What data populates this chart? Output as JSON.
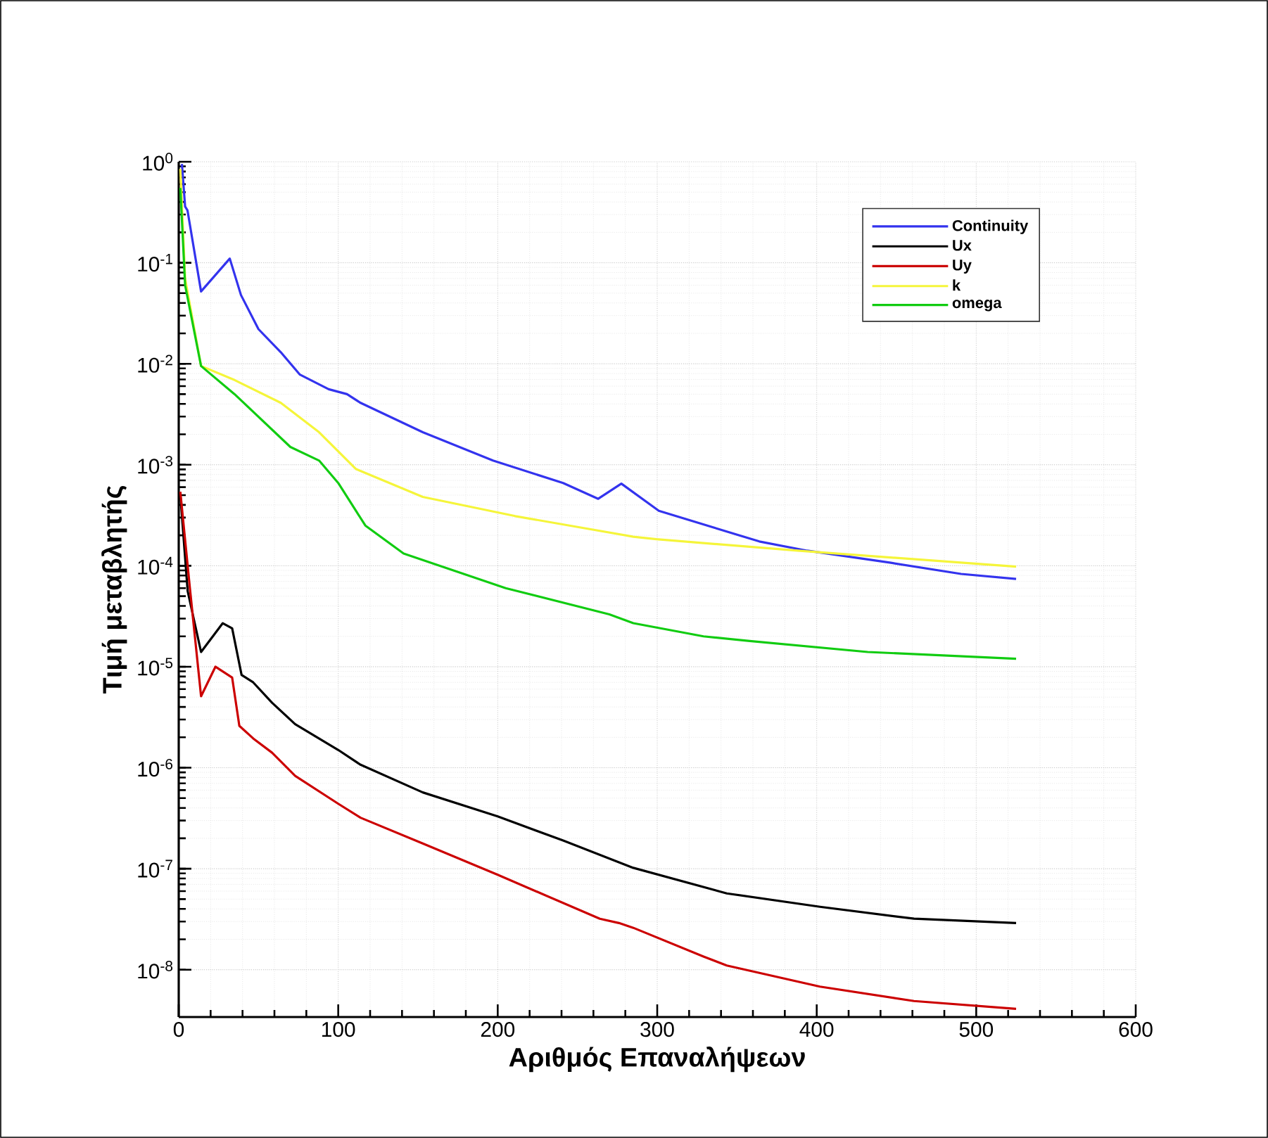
{
  "chart_data": {
    "type": "line",
    "xlabel": "Αριθμός Επαναλήψεων",
    "ylabel": "Τιμή μεταβλητής",
    "log": "y",
    "grid": true,
    "legend": "top right",
    "xlim": [
      0,
      600
    ],
    "xticks": [
      0,
      100,
      200,
      300,
      400,
      500,
      600
    ],
    "ylim": [
      3.4e-09,
      1
    ],
    "yticks": [
      {
        "value": 1e-08,
        "label": "10$^{-8}$"
      },
      {
        "value": 1e-07,
        "label": "10$^{-7}$"
      },
      {
        "value": 1e-06,
        "label": "10$^{-6}$"
      },
      {
        "value": 1e-05,
        "label": "10$^{-5}$"
      },
      {
        "value": 0.0001,
        "label": "10$^{-4}$"
      },
      {
        "value": 0.001,
        "label": "10$^{-3}$"
      },
      {
        "value": 0.01,
        "label": "10$^{-2}$"
      },
      {
        "value": 0.1,
        "label": "10$^{-1}$"
      },
      {
        "value": 1,
        "label": "10$^{0}$"
      }
    ],
    "series": [
      {
        "name": "Continuity",
        "color": "#3333ee",
        "x": [
          2,
          4,
          5.5,
          14,
          32,
          39,
          50,
          64,
          76,
          94,
          105.5,
          114,
          153,
          197,
          241,
          263,
          277.5,
          301,
          335,
          364,
          394,
          446.5,
          490.5,
          525
        ],
        "values": [
          0.95,
          0.36,
          0.33,
          0.052,
          0.11,
          0.048,
          0.022,
          0.013,
          0.0078,
          0.0056,
          0.005,
          0.0041,
          0.0021,
          0.0011,
          0.00066,
          0.00046,
          0.00065,
          0.00035,
          0.00024,
          0.000174,
          0.000141,
          0.000107,
          8.3e-05,
          7.4e-05
        ]
      },
      {
        "name": "Ux",
        "color": "#000000",
        "x": [
          1,
          5.6,
          14,
          27.6,
          33.5,
          39.4,
          46.7,
          58.5,
          73,
          100,
          114,
          153,
          200,
          241,
          285,
          343.6,
          402,
          461,
          525
        ],
        "values": [
          0.0005,
          5.6e-05,
          1.4e-05,
          2.7e-05,
          2.4e-05,
          8.3e-06,
          7e-06,
          4.4e-06,
          2.7e-06,
          1.5e-06,
          1.07e-06,
          5.7e-07,
          3.3e-07,
          1.9e-07,
          1.02e-07,
          5.7e-08,
          4.2e-08,
          3.2e-08,
          2.9e-08
        ]
      },
      {
        "name": "Uy",
        "color": "#cc0000",
        "x": [
          1,
          7,
          14,
          23,
          33.5,
          38,
          46.7,
          58.5,
          73,
          100,
          114,
          153,
          200,
          264,
          276,
          285,
          329,
          343.6,
          402,
          461,
          525
        ],
        "values": [
          0.00054,
          6e-05,
          5.1e-06,
          1e-05,
          7.8e-06,
          2.6e-06,
          1.95e-06,
          1.41e-06,
          8.3e-07,
          4.4e-07,
          3.2e-07,
          1.78e-07,
          8.7e-08,
          3.2e-08,
          2.9e-08,
          2.6e-08,
          1.35e-08,
          1.1e-08,
          6.8e-09,
          4.9e-09,
          4.1e-09
        ]
      },
      {
        "name": "k",
        "color": "#f5f53a",
        "x": [
          1,
          4,
          14,
          35,
          64,
          88,
          111,
          153,
          211,
          285,
          299.5,
          388,
          525
        ],
        "values": [
          0.85,
          0.07,
          0.0095,
          0.0069,
          0.0041,
          0.0021,
          0.00091,
          0.00048,
          0.00031,
          0.000194,
          0.000183,
          0.000141,
          9.8e-05
        ]
      },
      {
        "name": "omega",
        "color": "#11cc11",
        "x": [
          1,
          4,
          14,
          35,
          70,
          88,
          100,
          117,
          141,
          205,
          270,
          285,
          329,
          358,
          432,
          525
        ],
        "values": [
          0.55,
          0.06,
          0.0095,
          0.005,
          0.0015,
          0.0011,
          0.00066,
          0.00025,
          0.000132,
          6e-05,
          3.3e-05,
          2.7e-05,
          2e-05,
          1.8e-05,
          1.4e-05,
          1.2e-05
        ]
      }
    ]
  }
}
